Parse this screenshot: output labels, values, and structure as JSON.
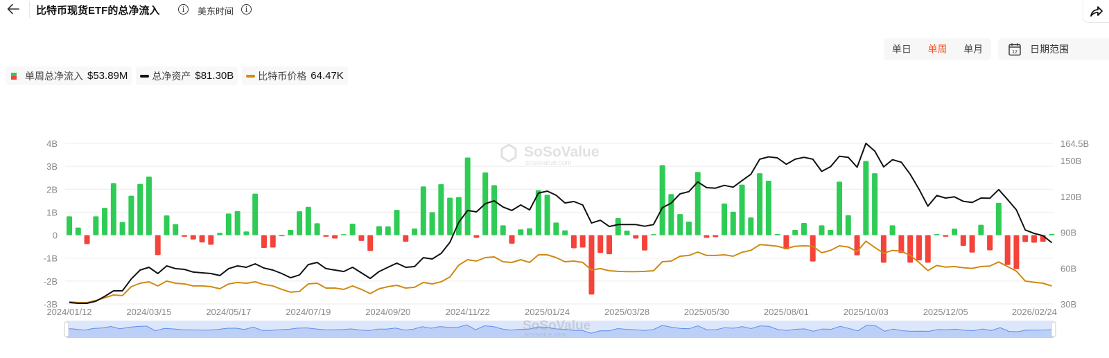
{
  "header": {
    "title": "比特币现货ETF的总净流入",
    "timezone": "美东时间",
    "icons": [
      "back-arrow-icon",
      "info-icon",
      "share-icon",
      "calendar-icon"
    ]
  },
  "controls": {
    "periods": [
      {
        "label": "单日",
        "active": false
      },
      {
        "label": "单周",
        "active": true
      },
      {
        "label": "单月",
        "active": false
      }
    ],
    "date_range_label": "日期范围",
    "calendar_icon_text": "12"
  },
  "legend": [
    {
      "label": "单周总净流入",
      "value": "$53.89M"
    },
    {
      "label": "总净资产",
      "value": "$81.30B"
    },
    {
      "label": "比特币价格",
      "value": "64.47K"
    }
  ],
  "watermark": {
    "brand": "SoSoValue",
    "url": "sosovalue.com"
  },
  "colors": {
    "inflow_positive": "#2ecc55",
    "inflow_negative": "#f4433a",
    "net_assets": "#111111",
    "btc_price": "#d08a12",
    "accent": "#f5572c",
    "navigator": "#5b8def"
  },
  "chart_data": {
    "type": "bar+line",
    "x_tick_labels": [
      {
        "index": 0,
        "label": "2024/01/12"
      },
      {
        "index": 9,
        "label": "2024/03/15"
      },
      {
        "index": 18,
        "label": "2024/05/17"
      },
      {
        "index": 27,
        "label": "2024/07/19"
      },
      {
        "index": 36,
        "label": "2024/09/20"
      },
      {
        "index": 45,
        "label": "2024/11/22"
      },
      {
        "index": 54,
        "label": "2025/01/24"
      },
      {
        "index": 63,
        "label": "2025/03/28"
      },
      {
        "index": 72,
        "label": "2025/05/30"
      },
      {
        "index": 81,
        "label": "2025/08/01"
      },
      {
        "index": 90,
        "label": "2025/10/03"
      },
      {
        "index": 99,
        "label": "2025/12/05"
      },
      {
        "index": 111,
        "label": "2026/02/24"
      }
    ],
    "left_axis": {
      "ticks": [
        "4B",
        "3B",
        "2B",
        "1B",
        "0",
        "-1B",
        "-2B",
        "-3B"
      ],
      "ylim": [
        -3,
        4
      ],
      "unit": "B USD"
    },
    "right_axis": {
      "ticks": [
        {
          "v": 164.5,
          "label": "164.5B"
        },
        {
          "v": 150,
          "label": "150B"
        },
        {
          "v": 120,
          "label": "120B"
        },
        {
          "v": 90,
          "label": "90B"
        },
        {
          "v": 60,
          "label": "60B"
        },
        {
          "v": 30,
          "label": "30B"
        }
      ],
      "ylim": [
        30,
        164.5
      ]
    },
    "price_axis_hidden": {
      "ylim_k": [
        39.9,
        258.8
      ]
    },
    "grid": true,
    "series": [
      {
        "name": "单周总净流入",
        "type": "bar",
        "axis": "left",
        "values": [
          0.82,
          0.33,
          -0.39,
          0.82,
          1.19,
          2.27,
          0.57,
          1.72,
          2.23,
          2.55,
          -0.87,
          0.86,
          0.48,
          -0.07,
          -0.19,
          -0.32,
          -0.42,
          0.1,
          0.94,
          1.05,
          0.16,
          1.81,
          -0.56,
          -0.54,
          -0.03,
          0.23,
          1.04,
          1.23,
          0.52,
          -0.07,
          -0.15,
          0.03,
          0.5,
          -0.25,
          -0.69,
          0.39,
          0.38,
          1.1,
          -0.29,
          0.29,
          2.12,
          1.0,
          2.22,
          1.63,
          1.66,
          3.38,
          -0.12,
          2.73,
          2.18,
          0.43,
          -0.37,
          0.25,
          0.3,
          1.96,
          1.76,
          0.55,
          0.21,
          -0.57,
          -0.54,
          -2.59,
          -0.78,
          -0.83,
          0.74,
          0.2,
          -0.15,
          -0.67,
          0.02,
          3.05,
          1.79,
          0.92,
          0.59,
          2.75,
          -0.12,
          -0.09,
          1.38,
          1.02,
          2.2,
          0.77,
          2.7,
          2.37,
          0.05,
          -0.62,
          0.23,
          0.53,
          -1.15,
          0.43,
          0.23,
          2.33,
          0.87,
          -0.88,
          3.23,
          2.7,
          -1.2,
          0.43,
          -0.78,
          -1.2,
          -1.1,
          -1.2,
          0.05,
          -0.07,
          0.28,
          -0.47,
          -0.76,
          0.45,
          -0.66,
          1.41,
          -1.3,
          -1.48,
          -0.3,
          -0.33,
          -0.29,
          0.054
        ]
      },
      {
        "name": "总净资产",
        "type": "line",
        "axis": "right",
        "values": [
          31.2,
          30.6,
          30.6,
          32.3,
          36.4,
          41,
          41,
          51,
          58.4,
          60.7,
          55.5,
          61.9,
          59.6,
          59,
          56.7,
          56.1,
          55.5,
          53.8,
          59.6,
          61.9,
          60.7,
          63.6,
          60.1,
          58.4,
          55.5,
          52,
          54.3,
          63,
          64.8,
          59.6,
          58.4,
          57.2,
          60.7,
          56.1,
          51.4,
          57.2,
          60.7,
          64.2,
          60.7,
          61.3,
          68.8,
          67.7,
          72.3,
          81.6,
          98.4,
          108.3,
          107.1,
          114,
          116.4,
          111.2,
          108.3,
          112.9,
          108.8,
          122.8,
          124.5,
          121,
          114.6,
          115.8,
          112.9,
          97.8,
          100.1,
          94.9,
          96.5,
          96.5,
          96.5,
          95.1,
          96.5,
          110.6,
          114.5,
          122.2,
          124.1,
          132.2,
          127.4,
          127,
          129.3,
          127.8,
          133.3,
          138.6,
          151.2,
          153.2,
          152.3,
          147,
          151.2,
          152.8,
          151.2,
          141,
          144.9,
          153.7,
          152.8,
          144.5,
          164.5,
          158,
          144.8,
          150.8,
          148.7,
          138.6,
          126.1,
          111.9,
          120.8,
          118.7,
          119.7,
          116,
          115,
          118.7,
          118.5,
          125.8,
          117.5,
          108.8,
          92,
          89.1,
          87.2,
          81.3
        ]
      },
      {
        "name": "比特币价格",
        "type": "line",
        "axis": "hidden",
        "values": [
          42.8,
          41.8,
          41.8,
          44.7,
          48.4,
          52.2,
          51.3,
          63.5,
          68.2,
          70.1,
          64.5,
          71.1,
          68.2,
          67.3,
          64.5,
          64.5,
          63.5,
          60.7,
          67.3,
          69.2,
          68.2,
          70.1,
          66.4,
          64.5,
          59.8,
          56,
          57,
          67.3,
          68.2,
          61.6,
          61.6,
          59.8,
          64.5,
          59.8,
          54.1,
          60.7,
          63.5,
          65.4,
          61.6,
          62.6,
          69.2,
          67.3,
          70.1,
          76.7,
          92.8,
          100.3,
          98.4,
          103.1,
          104.1,
          97.5,
          96.5,
          100.3,
          96.5,
          106.9,
          106.9,
          103.1,
          97.5,
          98.4,
          96.5,
          86.2,
          88.1,
          85.2,
          84.3,
          84.0,
          84.0,
          84.3,
          85.2,
          97.5,
          98.4,
          105,
          106,
          110.7,
          106,
          106,
          106.9,
          105,
          110.4,
          112.9,
          120.8,
          119.8,
          118.6,
          115.4,
          118.6,
          119.2,
          118.6,
          109.7,
          112.9,
          119.2,
          117.6,
          111.4,
          125.5,
          117,
          109.1,
          112.9,
          111.9,
          106,
          96.5,
          85.5,
          92.4,
          90.2,
          90.9,
          89.3,
          88.4,
          90.9,
          91.6,
          97.2,
          90.9,
          84.6,
          71.1,
          69.5,
          68.2,
          64.47
        ]
      }
    ]
  }
}
